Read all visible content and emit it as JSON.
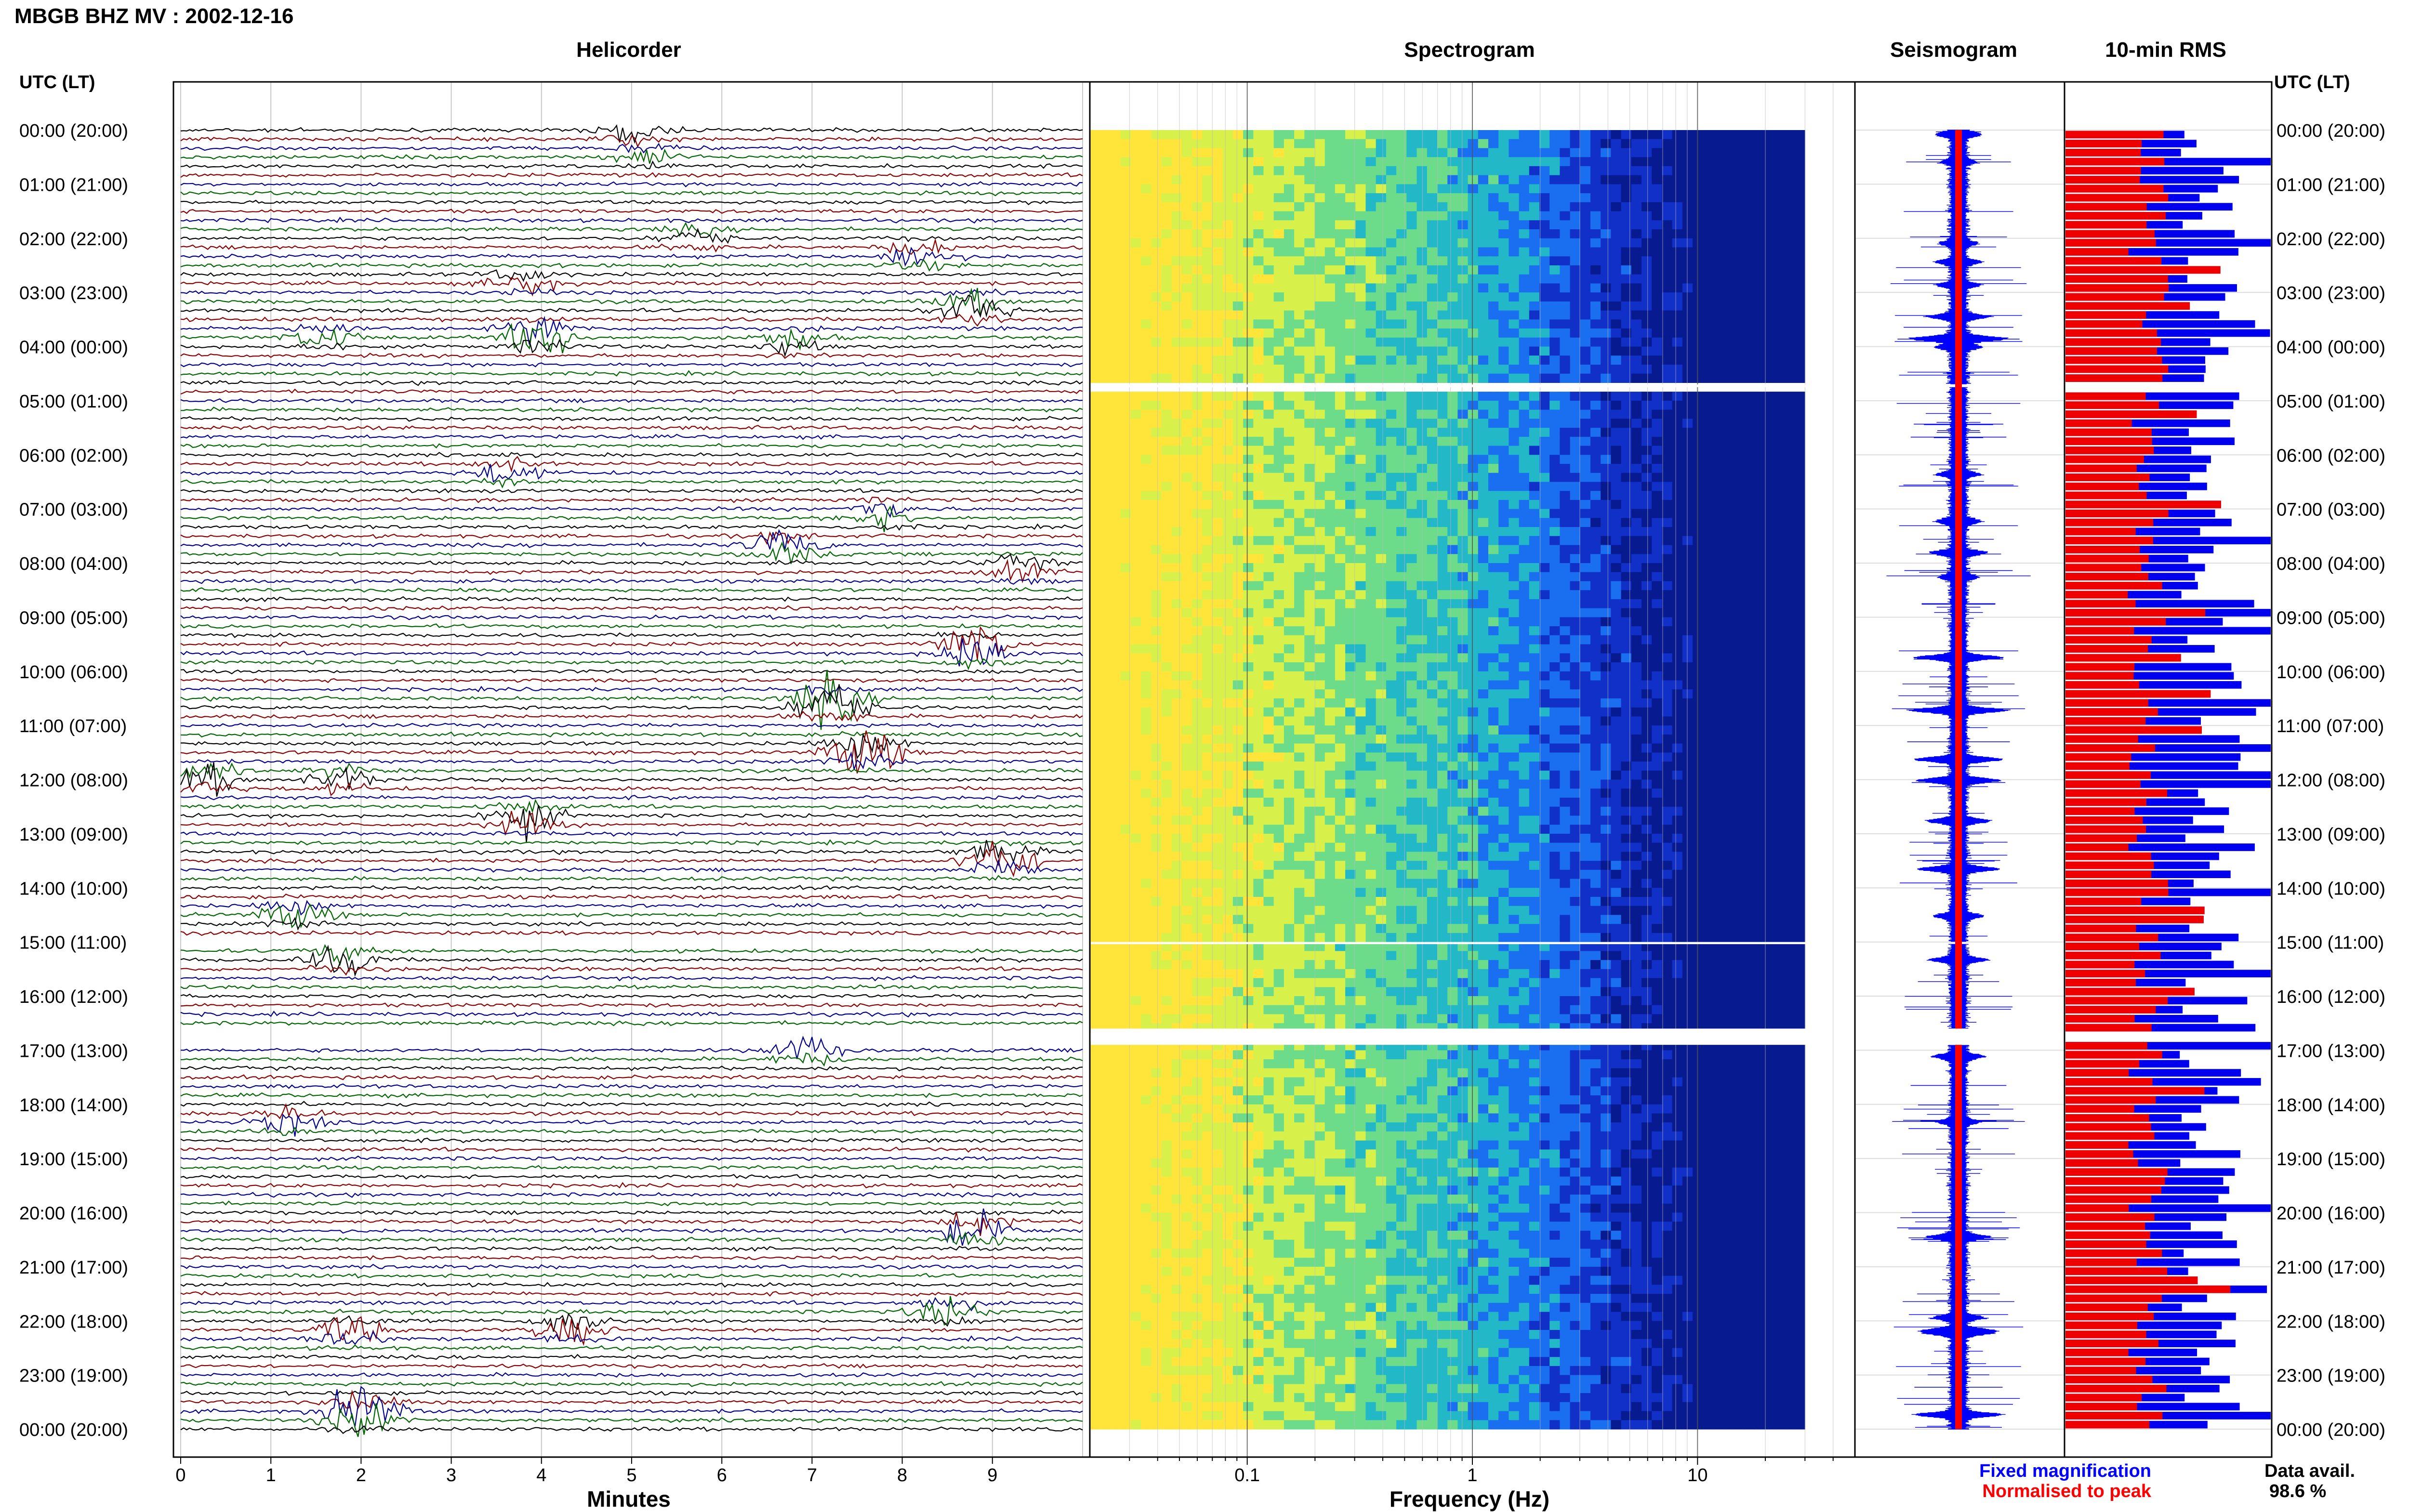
{
  "header": {
    "title": "MBGB BHZ MV : 2002-12-16",
    "utc_label": "UTC (LT)",
    "utc_label_right": "UTC (LT)"
  },
  "panels": {
    "helicorder": "Helicorder",
    "spectrogram": "Spectrogram",
    "seismogram": "Seismogram",
    "rms": "10-min RMS"
  },
  "legend": {
    "fixed": "Fixed magnification",
    "normalised": "Normalised to peak",
    "fixed_color": "#0000ff",
    "normalised_color": "#ff0000"
  },
  "data_avail": {
    "label": "Data avail.",
    "value": "98.6 %"
  },
  "colors": {
    "trace_cycle": [
      "#000000",
      "#8b0000",
      "#00008b",
      "#006400"
    ],
    "rms_fixed": "#0000ee",
    "rms_peak": "#ee0000"
  },
  "chart_data": [
    {
      "type": "line",
      "name": "helicorder",
      "xlabel": "Minutes",
      "x_ticks": [
        "0",
        "1",
        "2",
        "3",
        "4",
        "5",
        "6",
        "7",
        "8",
        "9"
      ],
      "xlim": [
        0,
        10
      ],
      "ylabel": "",
      "row_labels": [
        "00:00 (20:00)",
        "01:00 (21:00)",
        "02:00 (22:00)",
        "03:00 (23:00)",
        "04:00 (00:00)",
        "05:00 (01:00)",
        "06:00 (02:00)",
        "07:00 (03:00)",
        "08:00 (04:00)",
        "09:00 (05:00)",
        "10:00 (06:00)",
        "11:00 (07:00)",
        "12:00 (08:00)",
        "13:00 (09:00)",
        "14:00 (10:00)",
        "15:00 (11:00)",
        "16:00 (12:00)",
        "17:00 (13:00)",
        "18:00 (14:00)",
        "19:00 (15:00)",
        "20:00 (16:00)",
        "21:00 (17:00)",
        "22:00 (18:00)",
        "23:00 (19:00)",
        "00:00 (20:00)"
      ],
      "traces_per_hour": 6,
      "gap_hours": [
        16.6,
        16.9
      ],
      "events": [
        {
          "hour": 0.0,
          "minute": 5.0,
          "amp": 1.3
        },
        {
          "hour": 0.5,
          "minute": 5.2,
          "amp": 0.9
        },
        {
          "hour": 2.0,
          "minute": 5.7,
          "amp": 1.0
        },
        {
          "hour": 2.3,
          "minute": 8.2,
          "amp": 1.4
        },
        {
          "hour": 2.8,
          "minute": 3.8,
          "amp": 1.2
        },
        {
          "hour": 3.3,
          "minute": 8.8,
          "amp": 2.0
        },
        {
          "hour": 3.8,
          "minute": 4.0,
          "amp": 2.5
        },
        {
          "hour": 3.8,
          "minute": 1.6,
          "amp": 1.2
        },
        {
          "hour": 3.9,
          "minute": 6.8,
          "amp": 1.3
        },
        {
          "hour": 6.3,
          "minute": 3.6,
          "amp": 1.2
        },
        {
          "hour": 7.1,
          "minute": 7.8,
          "amp": 1.3
        },
        {
          "hour": 7.7,
          "minute": 6.7,
          "amp": 1.7
        },
        {
          "hour": 8.1,
          "minute": 9.3,
          "amp": 1.0
        },
        {
          "hour": 9.6,
          "minute": 8.8,
          "amp": 3.0
        },
        {
          "hour": 10.6,
          "minute": 7.2,
          "amp": 3.5
        },
        {
          "hour": 11.5,
          "minute": 7.6,
          "amp": 3.0
        },
        {
          "hour": 12.0,
          "minute": 0.3,
          "amp": 1.6
        },
        {
          "hour": 12.0,
          "minute": 1.8,
          "amp": 1.2
        },
        {
          "hour": 12.7,
          "minute": 3.8,
          "amp": 2.0
        },
        {
          "hour": 13.5,
          "minute": 9.1,
          "amp": 2.8
        },
        {
          "hour": 14.5,
          "minute": 1.3,
          "amp": 1.5
        },
        {
          "hour": 15.3,
          "minute": 1.8,
          "amp": 1.7
        },
        {
          "hour": 17.0,
          "minute": 6.9,
          "amp": 1.5
        },
        {
          "hour": 18.3,
          "minute": 1.2,
          "amp": 1.2
        },
        {
          "hour": 20.3,
          "minute": 8.8,
          "amp": 2.0
        },
        {
          "hour": 21.8,
          "minute": 8.5,
          "amp": 1.5
        },
        {
          "hour": 22.1,
          "minute": 4.3,
          "amp": 1.8
        },
        {
          "hour": 22.2,
          "minute": 1.9,
          "amp": 1.6
        },
        {
          "hour": 23.7,
          "minute": 2.0,
          "amp": 3.0
        }
      ]
    },
    {
      "type": "heatmap",
      "name": "spectrogram",
      "xlabel": "Frequency (Hz)",
      "x_scale": "log",
      "xlim": [
        0.02,
        50
      ],
      "x_ticks": [
        {
          "value": 0.1,
          "label": "0.1"
        },
        {
          "value": 1,
          "label": "1"
        },
        {
          "value": 10,
          "label": "10"
        }
      ],
      "f_max_data": 30,
      "colormap": [
        "#ffe43a",
        "#d8f04a",
        "#6cdc8a",
        "#22b8c8",
        "#1a6ef0",
        "#1030c8",
        "#081a90"
      ],
      "gaps_hours": [
        [
          4.7,
          4.75
        ],
        [
          15.0,
          15.04
        ],
        [
          16.6,
          16.9
        ]
      ]
    },
    {
      "type": "line",
      "name": "seismogram",
      "title": "Seismogram",
      "series": [
        {
          "name": "Fixed magnification",
          "color": "#0000ff"
        },
        {
          "name": "Normalised to peak",
          "color": "#ff0000"
        }
      ]
    },
    {
      "type": "bar",
      "name": "rms",
      "title": "10-min RMS",
      "orientation": "horizontal",
      "series": [
        {
          "name": "Fixed magnification",
          "color": "#0000ee"
        },
        {
          "name": "Normalised to peak",
          "color": "#ee0000"
        }
      ]
    }
  ]
}
